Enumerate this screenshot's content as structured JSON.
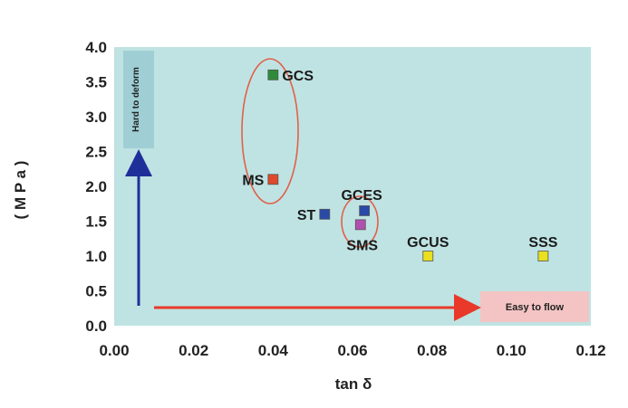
{
  "chart_data": {
    "type": "scatter",
    "xlabel": "tan δ",
    "ylabel": "( M P a )",
    "xlim": [
      0.0,
      0.12
    ],
    "ylim": [
      0.0,
      4.0
    ],
    "x_ticks": [
      "0.00",
      "0.02",
      "0.04",
      "0.06",
      "0.08",
      "0.10",
      "0.12"
    ],
    "y_ticks": [
      "0.0",
      "0.5",
      "1.0",
      "1.5",
      "2.0",
      "2.5",
      "3.0",
      "3.5",
      "4.0"
    ],
    "grid": false,
    "plot_background": "#bfe3e3",
    "points": [
      {
        "label": "GCS",
        "x": 0.04,
        "y": 3.6,
        "color": "#2e8b3a"
      },
      {
        "label": "MS",
        "x": 0.04,
        "y": 2.1,
        "color": "#e04a2a"
      },
      {
        "label": "ST",
        "x": 0.053,
        "y": 1.6,
        "color": "#2a4aa8"
      },
      {
        "label": "GCES",
        "x": 0.063,
        "y": 1.65,
        "color": "#2a4aa8"
      },
      {
        "label": "SMS",
        "x": 0.062,
        "y": 1.45,
        "color": "#b050b0"
      },
      {
        "label": "GCUS",
        "x": 0.079,
        "y": 1.0,
        "color": "#e8e020"
      },
      {
        "label": "SSS",
        "x": 0.108,
        "y": 1.0,
        "color": "#e8e020"
      }
    ],
    "annotations": {
      "up_arrow_label": "Hard to deform",
      "right_arrow_label": "Easy to flow",
      "up_arrow_color": "#1f2f9a",
      "right_arrow_color": "#e8392a",
      "ellipse_color": "#e0604a"
    }
  }
}
